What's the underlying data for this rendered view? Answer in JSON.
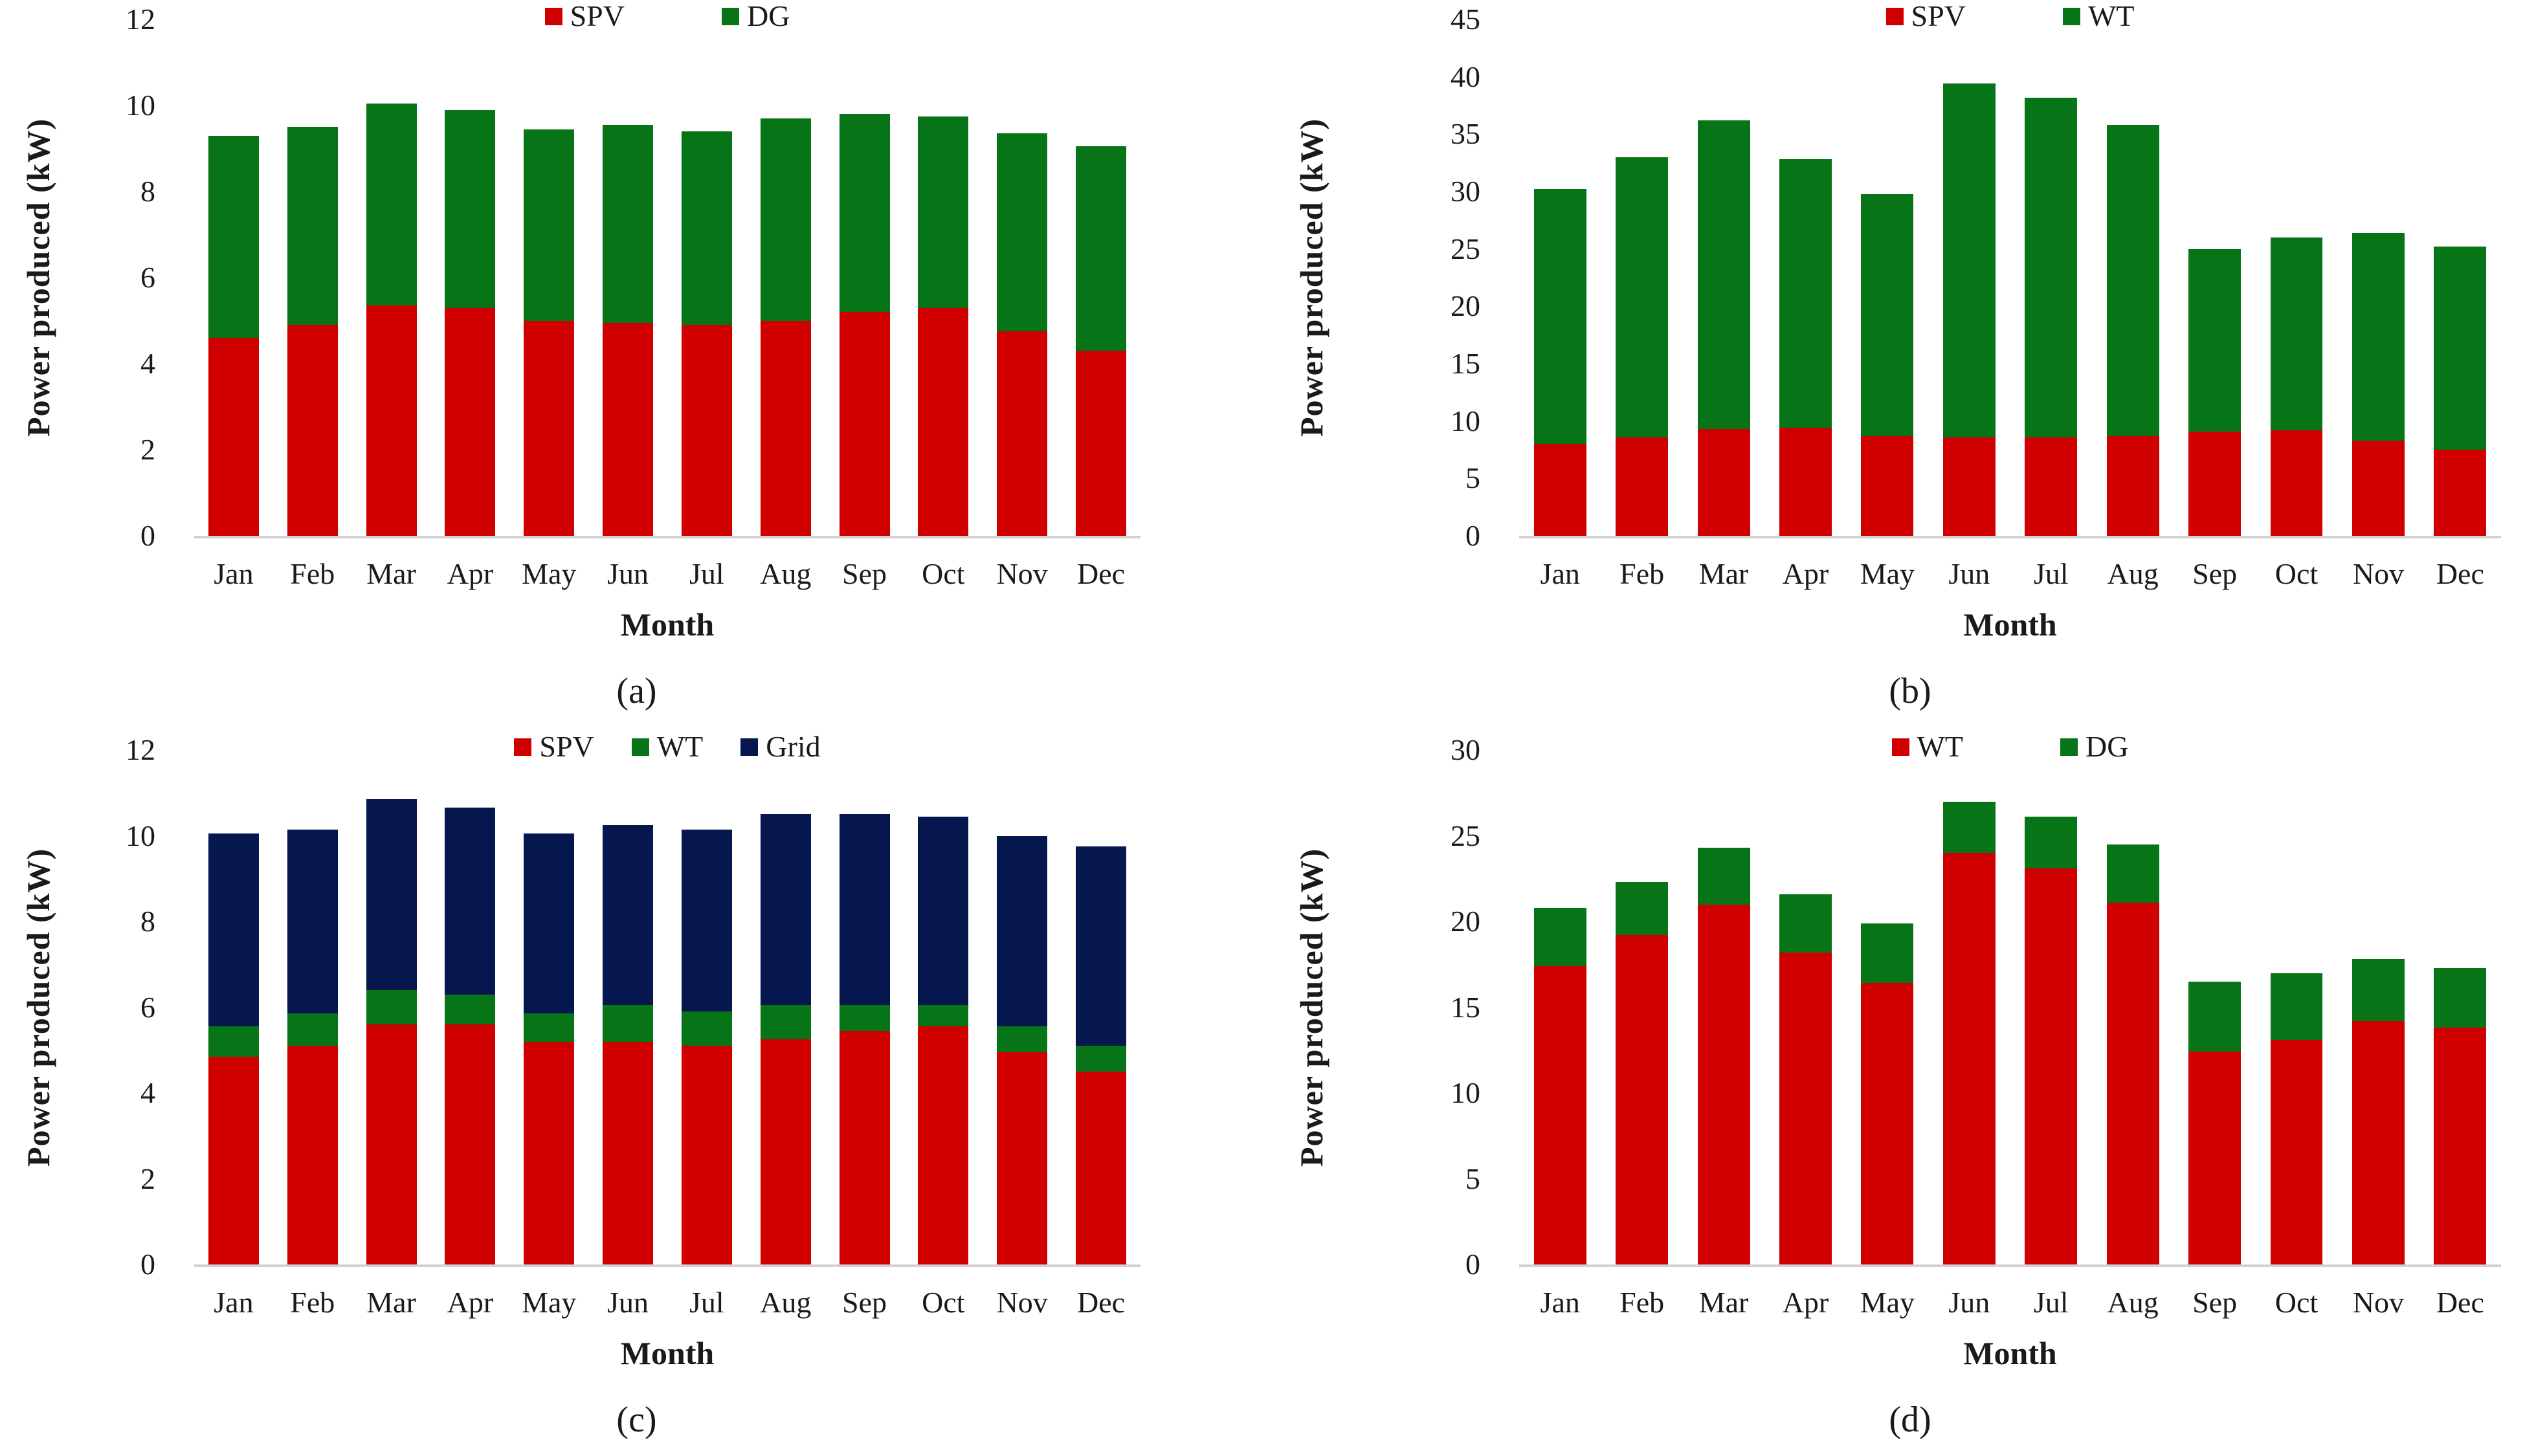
{
  "figure": {
    "y_axis_title": "Power produced (kW)",
    "x_axis_title": "Month",
    "months": [
      "Jan",
      "Feb",
      "Mar",
      "Apr",
      "May",
      "Jun",
      "Jul",
      "Aug",
      "Sep",
      "Oct",
      "Nov",
      "Dec"
    ],
    "colors": {
      "spv_red": "#d00000",
      "green": "#087418",
      "grid_navy": "#06164f",
      "baseline_gray": "#d2d2d2"
    }
  },
  "chart_data": [
    {
      "type": "bar",
      "stacked": true,
      "panel": "a",
      "caption": "(a)",
      "title": "",
      "xlabel": "Month",
      "ylabel": "Power produced (kW)",
      "ylim": [
        0,
        12
      ],
      "yticks": [
        0,
        2,
        4,
        6,
        8,
        10,
        12
      ],
      "grid": false,
      "legend_position": "top-center",
      "categories": [
        "Jan",
        "Feb",
        "Mar",
        "Apr",
        "May",
        "Jun",
        "Jul",
        "Aug",
        "Sep",
        "Oct",
        "Nov",
        "Dec"
      ],
      "series": [
        {
          "name": "SPV",
          "color": "#d00000",
          "values": [
            4.6,
            4.9,
            5.35,
            5.3,
            5.0,
            4.95,
            4.9,
            5.0,
            5.2,
            5.3,
            4.75,
            4.3
          ]
        },
        {
          "name": "DG",
          "color": "#087418",
          "values": [
            4.7,
            4.6,
            4.7,
            4.6,
            4.45,
            4.6,
            4.5,
            4.7,
            4.6,
            4.45,
            4.6,
            4.75
          ]
        }
      ]
    },
    {
      "type": "bar",
      "stacked": true,
      "panel": "b",
      "caption": "(b)",
      "title": "",
      "xlabel": "Month",
      "ylabel": "Power produced (kW)",
      "ylim": [
        0,
        45
      ],
      "yticks": [
        0,
        5,
        10,
        15,
        20,
        25,
        30,
        35,
        40,
        45
      ],
      "grid": false,
      "legend_position": "top-center",
      "categories": [
        "Jan",
        "Feb",
        "Mar",
        "Apr",
        "May",
        "Jun",
        "Jul",
        "Aug",
        "Sep",
        "Oct",
        "Nov",
        "Dec"
      ],
      "series": [
        {
          "name": "SPV",
          "color": "#d00000",
          "values": [
            8.0,
            8.6,
            9.3,
            9.4,
            8.7,
            8.6,
            8.6,
            8.7,
            9.1,
            9.2,
            8.3,
            7.5
          ]
        },
        {
          "name": "WT",
          "color": "#087418",
          "values": [
            22.2,
            24.4,
            26.9,
            23.4,
            21.1,
            30.8,
            29.6,
            27.1,
            15.9,
            16.8,
            18.1,
            17.7
          ]
        }
      ]
    },
    {
      "type": "bar",
      "stacked": true,
      "panel": "c",
      "caption": "(c)",
      "title": "",
      "xlabel": "Month",
      "ylabel": "Power produced (kW)",
      "ylim": [
        0,
        12
      ],
      "yticks": [
        0,
        2,
        4,
        6,
        8,
        10,
        12
      ],
      "grid": false,
      "legend_position": "top-center",
      "categories": [
        "Jan",
        "Feb",
        "Mar",
        "Apr",
        "May",
        "Jun",
        "Jul",
        "Aug",
        "Sep",
        "Oct",
        "Nov",
        "Dec"
      ],
      "series": [
        {
          "name": "SPV",
          "color": "#d00000",
          "values": [
            4.85,
            5.1,
            5.6,
            5.6,
            5.2,
            5.2,
            5.1,
            5.25,
            5.45,
            5.55,
            4.95,
            4.5
          ]
        },
        {
          "name": "WT",
          "color": "#087418",
          "values": [
            0.7,
            0.75,
            0.8,
            0.7,
            0.65,
            0.85,
            0.8,
            0.8,
            0.6,
            0.5,
            0.6,
            0.6
          ]
        },
        {
          "name": "Grid",
          "color": "#06164f",
          "values": [
            4.5,
            4.3,
            4.45,
            4.35,
            4.2,
            4.2,
            4.25,
            4.45,
            4.45,
            4.4,
            4.45,
            4.65
          ]
        }
      ]
    },
    {
      "type": "bar",
      "stacked": true,
      "panel": "d",
      "caption": "(d)",
      "title": "",
      "xlabel": "Month",
      "ylabel": "Power produced (kW)",
      "ylim": [
        0,
        30
      ],
      "yticks": [
        0,
        5,
        10,
        15,
        20,
        25,
        30
      ],
      "grid": false,
      "legend_position": "top-center",
      "categories": [
        "Jan",
        "Feb",
        "Mar",
        "Apr",
        "May",
        "Jun",
        "Jul",
        "Aug",
        "Sep",
        "Oct",
        "Nov",
        "Dec"
      ],
      "series": [
        {
          "name": "WT",
          "color": "#d00000",
          "values": [
            17.4,
            19.2,
            21.0,
            18.2,
            16.4,
            24.0,
            23.1,
            21.1,
            12.4,
            13.1,
            14.2,
            13.8
          ]
        },
        {
          "name": "DG",
          "color": "#087418",
          "values": [
            3.4,
            3.1,
            3.3,
            3.4,
            3.5,
            3.0,
            3.0,
            3.4,
            4.1,
            3.9,
            3.6,
            3.5
          ]
        }
      ]
    }
  ]
}
